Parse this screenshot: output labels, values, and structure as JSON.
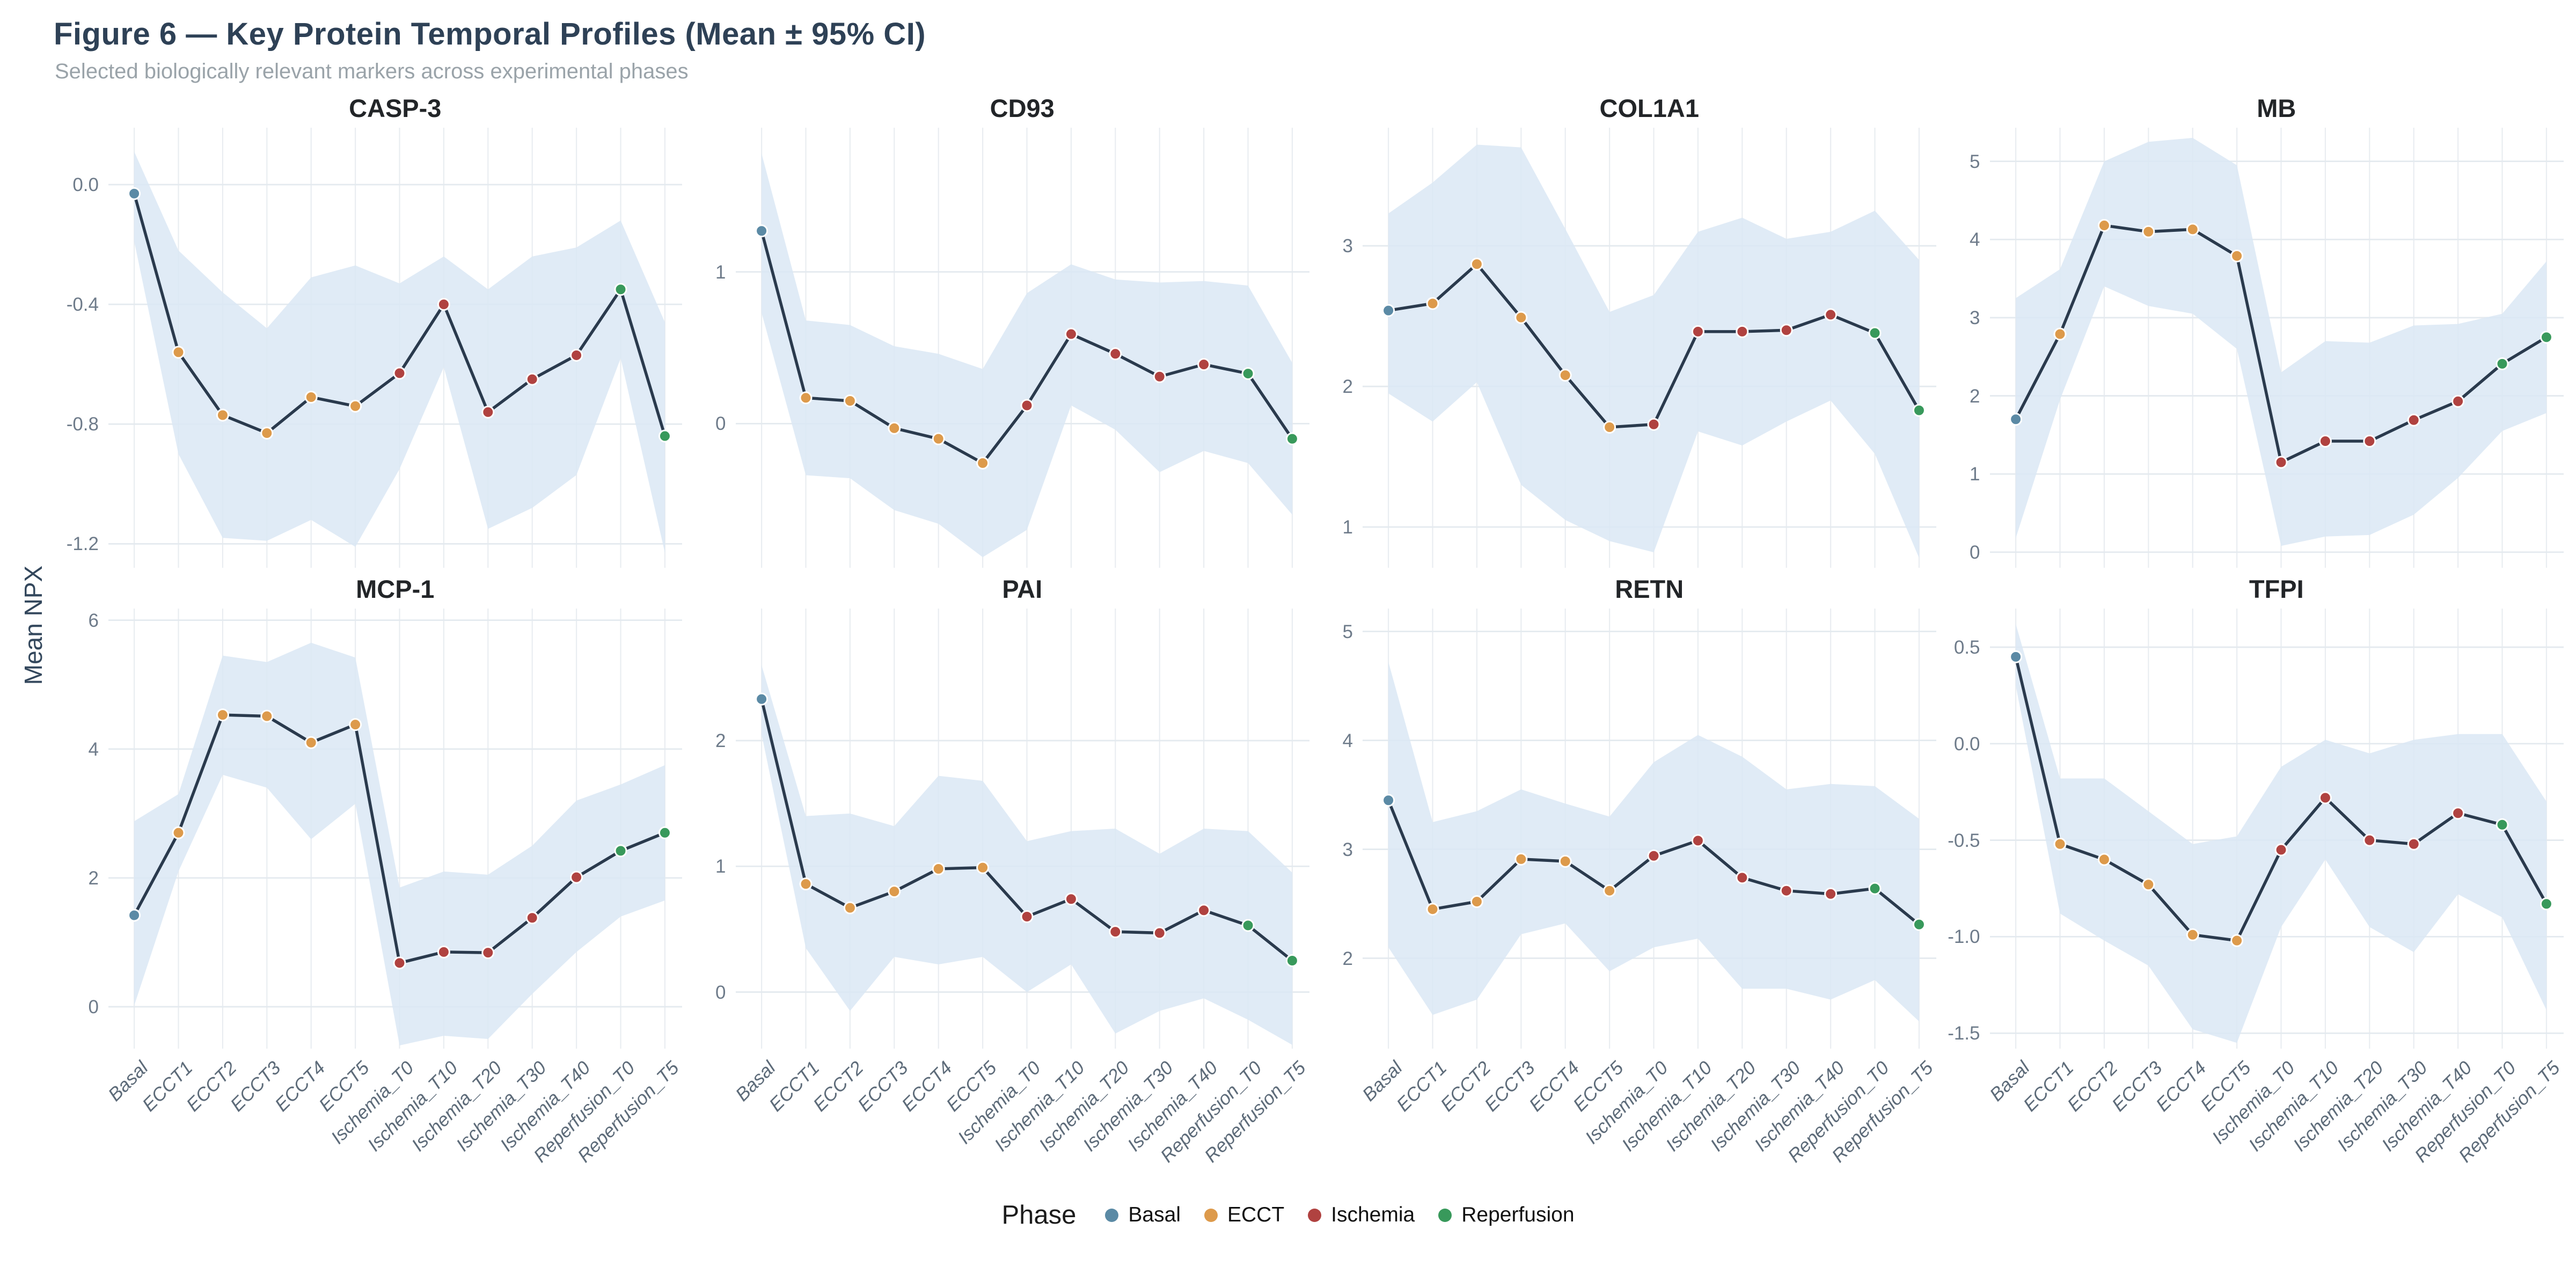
{
  "figure": {
    "title": "Figure 6 — Key Protein Temporal Profiles (Mean ± 95% CI)",
    "subtitle": "Selected biologically relevant markers across experimental phases",
    "ylabel": "Mean NPX"
  },
  "legend": {
    "title": "Phase",
    "items": [
      {
        "label": "Basal",
        "color": "#5b8aa5"
      },
      {
        "label": "ECCT",
        "color": "#dd9a4b"
      },
      {
        "label": "Ischemia",
        "color": "#b04240"
      },
      {
        "label": "Reperfusion",
        "color": "#38995b"
      }
    ]
  },
  "style": {
    "line_color": "#2a3a4d",
    "ribbon_color": "#dbe8f5",
    "grid_h_color": "#e4eaef",
    "grid_v_color": "#e9edf1",
    "tick_color": "#6e7b8a",
    "title_color": "#2e4156",
    "subtitle_color": "#9aa3a9",
    "facet_title_color": "#222528",
    "background": "#ffffff"
  },
  "categories": [
    "Basal",
    "ECCT1",
    "ECCT2",
    "ECCT3",
    "ECCT4",
    "ECCT5",
    "Ischemia_T0",
    "Ischemia_T10",
    "Ischemia_T20",
    "Ischemia_T30",
    "Ischemia_T40",
    "Reperfusion_T0",
    "Reperfusion_T5"
  ],
  "category_phases": [
    "Basal",
    "ECCT",
    "ECCT",
    "ECCT",
    "ECCT",
    "ECCT",
    "Ischemia",
    "Ischemia",
    "Ischemia",
    "Ischemia",
    "Ischemia",
    "Reperfusion",
    "Reperfusion"
  ],
  "chart_data": [
    {
      "type": "line",
      "title": "CASP-3",
      "categories": [
        "Basal",
        "ECCT1",
        "ECCT2",
        "ECCT3",
        "ECCT4",
        "ECCT5",
        "Ischemia_T0",
        "Ischemia_T10",
        "Ischemia_T20",
        "Ischemia_T30",
        "Ischemia_T40",
        "Reperfusion_T0",
        "Reperfusion_T5"
      ],
      "mean": [
        -0.03,
        -0.56,
        -0.77,
        -0.83,
        -0.71,
        -0.74,
        -0.63,
        -0.4,
        -0.76,
        -0.65,
        -0.57,
        -0.35,
        -0.84
      ],
      "ci_upper": [
        0.11,
        -0.22,
        -0.36,
        -0.48,
        -0.31,
        -0.27,
        -0.33,
        -0.24,
        -0.35,
        -0.24,
        -0.21,
        -0.12,
        -0.46
      ],
      "ci_lower": [
        -0.19,
        -0.9,
        -1.18,
        -1.19,
        -1.12,
        -1.21,
        -0.95,
        -0.61,
        -1.15,
        -1.08,
        -0.97,
        -0.58,
        -1.23
      ],
      "ytick_labels": [
        "0.0",
        "-0.4",
        "-0.8",
        "-1.2"
      ],
      "ytick_values": [
        0.0,
        -0.4,
        -0.8,
        -1.2
      ],
      "ylim": [
        -1.28,
        0.19
      ]
    },
    {
      "type": "line",
      "title": "CD93",
      "categories": [
        "Basal",
        "ECCT1",
        "ECCT2",
        "ECCT3",
        "ECCT4",
        "ECCT5",
        "Ischemia_T0",
        "Ischemia_T10",
        "Ischemia_T20",
        "Ischemia_T30",
        "Ischemia_T40",
        "Reperfusion_T0",
        "Reperfusion_T5"
      ],
      "mean": [
        1.27,
        0.17,
        0.15,
        -0.03,
        -0.1,
        -0.26,
        0.12,
        0.59,
        0.46,
        0.31,
        0.39,
        0.33,
        -0.1
      ],
      "ci_upper": [
        1.78,
        0.68,
        0.65,
        0.51,
        0.46,
        0.36,
        0.86,
        1.05,
        0.95,
        0.93,
        0.94,
        0.91,
        0.4
      ],
      "ci_lower": [
        0.73,
        -0.34,
        -0.36,
        -0.57,
        -0.66,
        -0.88,
        -0.7,
        0.12,
        -0.04,
        -0.32,
        -0.18,
        -0.26,
        -0.6
      ],
      "ytick_labels": [
        "1",
        "0"
      ],
      "ytick_values": [
        1,
        0
      ],
      "ylim": [
        -0.95,
        1.95
      ]
    },
    {
      "type": "line",
      "title": "COL1A1",
      "categories": [
        "Basal",
        "ECCT1",
        "ECCT2",
        "ECCT3",
        "ECCT4",
        "ECCT5",
        "Ischemia_T0",
        "Ischemia_T10",
        "Ischemia_T20",
        "Ischemia_T30",
        "Ischemia_T40",
        "Reperfusion_T0",
        "Reperfusion_T5"
      ],
      "mean": [
        2.54,
        2.59,
        2.87,
        2.49,
        2.08,
        1.71,
        1.73,
        2.39,
        2.39,
        2.4,
        2.51,
        2.38,
        1.83
      ],
      "ci_upper": [
        3.23,
        3.45,
        3.72,
        3.7,
        3.12,
        2.53,
        2.65,
        3.1,
        3.2,
        3.05,
        3.1,
        3.25,
        2.9
      ],
      "ci_lower": [
        1.95,
        1.75,
        2.03,
        1.3,
        1.05,
        0.9,
        0.82,
        1.68,
        1.58,
        1.75,
        1.9,
        1.52,
        0.78
      ],
      "ytick_labels": [
        "3",
        "2",
        "1"
      ],
      "ytick_values": [
        3,
        2,
        1
      ],
      "ylim": [
        0.71,
        3.84
      ]
    },
    {
      "type": "line",
      "title": "MB",
      "categories": [
        "Basal",
        "ECCT1",
        "ECCT2",
        "ECCT3",
        "ECCT4",
        "ECCT5",
        "Ischemia_T0",
        "Ischemia_T10",
        "Ischemia_T20",
        "Ischemia_T30",
        "Ischemia_T40",
        "Reperfusion_T0",
        "Reperfusion_T5"
      ],
      "mean": [
        1.7,
        2.79,
        4.18,
        4.1,
        4.13,
        3.79,
        1.15,
        1.42,
        1.42,
        1.69,
        1.93,
        2.41,
        2.75
      ],
      "ci_upper": [
        3.25,
        3.62,
        5.0,
        5.25,
        5.3,
        4.95,
        2.3,
        2.7,
        2.68,
        2.9,
        2.92,
        3.05,
        3.72
      ],
      "ci_lower": [
        0.18,
        1.95,
        3.4,
        3.15,
        3.05,
        2.6,
        0.08,
        0.2,
        0.22,
        0.48,
        0.95,
        1.55,
        1.78
      ],
      "ytick_labels": [
        "5",
        "4",
        "3",
        "2",
        "1",
        "0"
      ],
      "ytick_values": [
        5,
        4,
        3,
        2,
        1,
        0
      ],
      "ylim": [
        -0.2,
        5.43
      ]
    },
    {
      "type": "line",
      "title": "MCP-1",
      "categories": [
        "Basal",
        "ECCT1",
        "ECCT2",
        "ECCT3",
        "ECCT4",
        "ECCT5",
        "Ischemia_T0",
        "Ischemia_T10",
        "Ischemia_T20",
        "Ischemia_T30",
        "Ischemia_T40",
        "Reperfusion_T0",
        "Reperfusion_T5"
      ],
      "mean": [
        1.42,
        2.7,
        4.53,
        4.51,
        4.1,
        4.38,
        0.68,
        0.85,
        0.84,
        1.38,
        2.01,
        2.42,
        2.7
      ],
      "ci_upper": [
        2.88,
        3.3,
        5.45,
        5.35,
        5.65,
        5.42,
        1.85,
        2.1,
        2.05,
        2.5,
        3.2,
        3.45,
        3.75
      ],
      "ci_lower": [
        0.02,
        2.1,
        3.6,
        3.4,
        2.6,
        3.15,
        -0.6,
        -0.45,
        -0.5,
        0.2,
        0.85,
        1.4,
        1.65
      ],
      "ytick_labels": [
        "6",
        "4",
        "2",
        "0"
      ],
      "ytick_values": [
        6,
        4,
        2,
        0
      ],
      "ylim": [
        -0.65,
        6.18
      ]
    },
    {
      "type": "line",
      "title": "PAI",
      "categories": [
        "Basal",
        "ECCT1",
        "ECCT2",
        "ECCT3",
        "ECCT4",
        "ECCT5",
        "Ischemia_T0",
        "Ischemia_T10",
        "Ischemia_T20",
        "Ischemia_T30",
        "Ischemia_T40",
        "Reperfusion_T0",
        "Reperfusion_T5"
      ],
      "mean": [
        2.33,
        0.86,
        0.67,
        0.8,
        0.98,
        0.99,
        0.6,
        0.74,
        0.48,
        0.47,
        0.65,
        0.53,
        0.25
      ],
      "ci_upper": [
        2.6,
        1.4,
        1.42,
        1.32,
        1.72,
        1.68,
        1.2,
        1.28,
        1.3,
        1.1,
        1.3,
        1.28,
        0.95
      ],
      "ci_lower": [
        2.05,
        0.35,
        -0.15,
        0.28,
        0.22,
        0.28,
        0.0,
        0.22,
        -0.33,
        -0.15,
        -0.05,
        -0.22,
        -0.42
      ],
      "ytick_labels": [
        "2",
        "1",
        "0"
      ],
      "ytick_values": [
        2,
        1,
        0
      ],
      "ylim": [
        -0.45,
        3.05
      ]
    },
    {
      "type": "line",
      "title": "RETN",
      "categories": [
        "Basal",
        "ECCT1",
        "ECCT2",
        "ECCT3",
        "ECCT4",
        "ECCT5",
        "Ischemia_T0",
        "Ischemia_T10",
        "Ischemia_T20",
        "Ischemia_T30",
        "Ischemia_T40",
        "Reperfusion_T0",
        "Reperfusion_T5"
      ],
      "mean": [
        3.45,
        2.45,
        2.52,
        2.91,
        2.89,
        2.62,
        2.94,
        3.08,
        2.74,
        2.62,
        2.59,
        2.64,
        2.31
      ],
      "ci_upper": [
        4.72,
        3.25,
        3.35,
        3.55,
        3.42,
        3.3,
        3.8,
        4.05,
        3.85,
        3.55,
        3.6,
        3.58,
        3.28
      ],
      "ci_lower": [
        2.1,
        1.48,
        1.62,
        2.22,
        2.32,
        1.88,
        2.1,
        2.18,
        1.72,
        1.72,
        1.62,
        1.8,
        1.42
      ],
      "ytick_labels": [
        "5",
        "4",
        "3",
        "2"
      ],
      "ytick_values": [
        5,
        4,
        3,
        2
      ],
      "ylim": [
        1.17,
        5.21
      ]
    },
    {
      "type": "line",
      "title": "TFPI",
      "categories": [
        "Basal",
        "ECCT1",
        "ECCT2",
        "ECCT3",
        "ECCT4",
        "ECCT5",
        "Ischemia_T0",
        "Ischemia_T10",
        "Ischemia_T20",
        "Ischemia_T30",
        "Ischemia_T40",
        "Reperfusion_T0",
        "Reperfusion_T5"
      ],
      "mean": [
        0.45,
        -0.52,
        -0.6,
        -0.73,
        -0.99,
        -1.02,
        -0.55,
        -0.28,
        -0.5,
        -0.52,
        -0.36,
        -0.42,
        -0.83
      ],
      "ci_upper": [
        0.62,
        -0.18,
        -0.18,
        -0.35,
        -0.52,
        -0.48,
        -0.12,
        0.02,
        -0.05,
        0.02,
        0.05,
        0.05,
        -0.3
      ],
      "ci_lower": [
        0.3,
        -0.88,
        -1.02,
        -1.15,
        -1.48,
        -1.55,
        -0.95,
        -0.6,
        -0.95,
        -1.08,
        -0.78,
        -0.9,
        -1.38
      ],
      "ytick_labels": [
        "0.5",
        "0.0",
        "-0.5",
        "-1.0",
        "-1.5"
      ],
      "ytick_values": [
        0.5,
        0.0,
        -0.5,
        -1.0,
        -1.5
      ],
      "ylim": [
        -1.58,
        0.7
      ]
    }
  ]
}
